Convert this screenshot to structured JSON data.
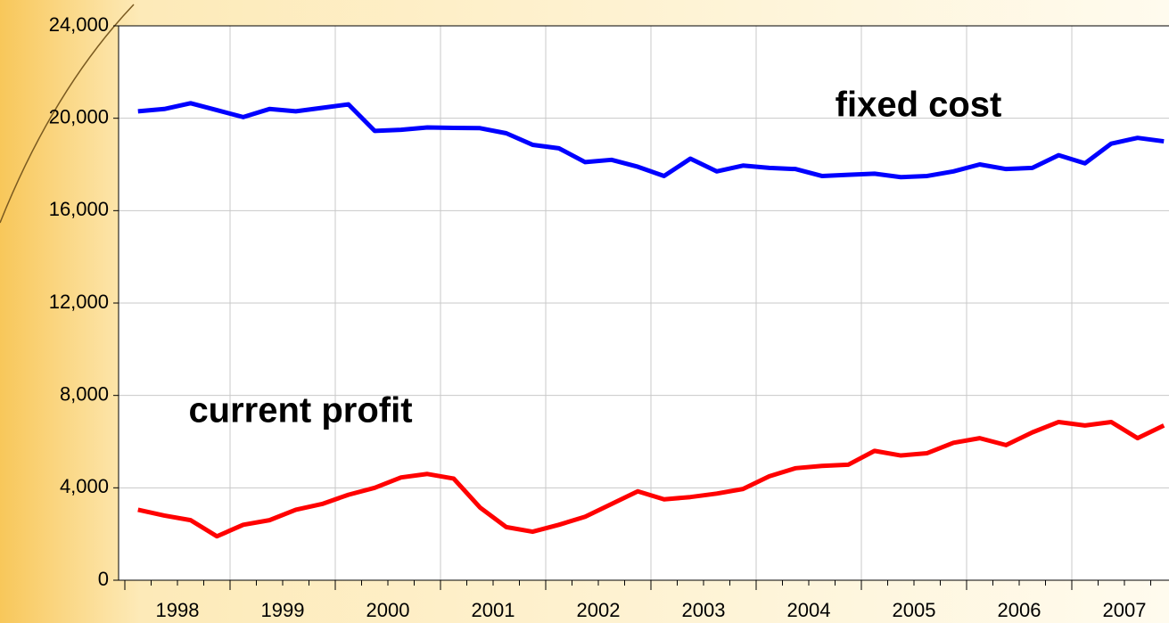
{
  "chart_data": {
    "type": "line",
    "categories": [
      "1998",
      null,
      null,
      null,
      "1999",
      null,
      null,
      null,
      "2000",
      null,
      null,
      null,
      "2001",
      null,
      null,
      null,
      "2002",
      null,
      null,
      null,
      "2003",
      null,
      null,
      null,
      "2004",
      null,
      null,
      null,
      "2005",
      null,
      null,
      null,
      "2006",
      null,
      null,
      null,
      "2007",
      null,
      null,
      null
    ],
    "series": [
      {
        "name": "fixed cost",
        "color": "#0000ff",
        "values": [
          20300,
          20400,
          20650,
          20350,
          20050,
          20400,
          20300,
          20450,
          20600,
          19450,
          19500,
          19600,
          19580,
          19570,
          19350,
          18850,
          18700,
          18100,
          18200,
          17900,
          17500,
          18250,
          17700,
          17950,
          17850,
          17800,
          17500,
          17550,
          17600,
          17450,
          17500,
          17700,
          18000,
          17800,
          17850,
          18400,
          18050,
          18900,
          19150,
          19000
        ]
      },
      {
        "name": "current profit",
        "color": "#ff0000",
        "values": [
          3050,
          2800,
          2600,
          1900,
          2400,
          2600,
          3050,
          3300,
          3700,
          4000,
          4450,
          4600,
          4400,
          3150,
          2300,
          2100,
          2400,
          2750,
          3300,
          3850,
          3500,
          3600,
          3750,
          3950,
          4500,
          4850,
          4950,
          5000,
          5600,
          5400,
          5500,
          5950,
          6150,
          5850,
          6400,
          6850,
          6700,
          6850,
          6150,
          6700
        ]
      }
    ],
    "ylim": [
      0,
      24000
    ],
    "yticks": [
      0,
      {
        "value": 4000,
        "label": "4,000"
      },
      {
        "value": 8000,
        "label": "8,000"
      },
      {
        "value": 12000,
        "label": "12,000"
      },
      {
        "value": 16000,
        "label": "16,000"
      },
      {
        "value": 20000,
        "label": "20,000"
      },
      {
        "value": 24000,
        "label": "24,000"
      }
    ],
    "grid": true
  }
}
